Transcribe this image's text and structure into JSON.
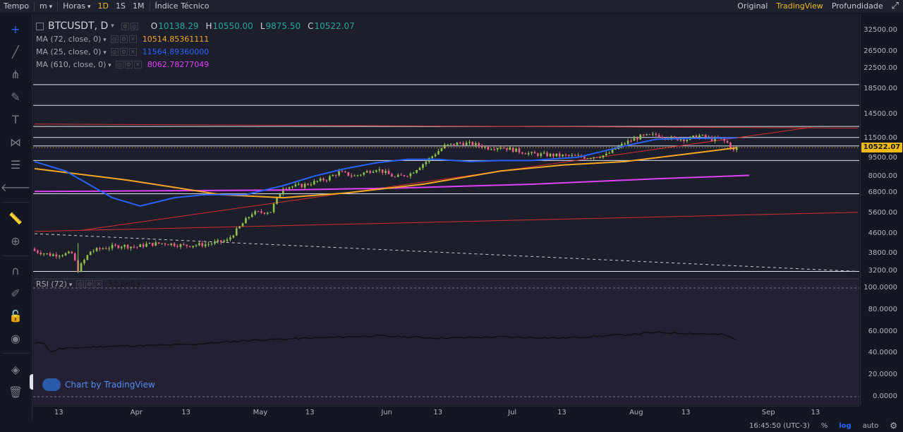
{
  "toolbar": {
    "time_label": "Tempo",
    "minute_label": "m",
    "hours_label": "Horas",
    "intervals": [
      "1D",
      "1S",
      "1M"
    ],
    "active_interval": "1D",
    "indicators_label": "Índice Técnico",
    "views": [
      "Original",
      "TradingView",
      "Profundidade"
    ],
    "active_view": "TradingView"
  },
  "legend": {
    "symbol": "BTCUSDT, D",
    "open_key": "O",
    "open": "10138.29",
    "high_key": "H",
    "high": "10550.00",
    "low_key": "L",
    "low": "9875.50",
    "close_key": "C",
    "close": "10522.07",
    "mas": [
      {
        "name": "MA (72, close, 0)",
        "value": "10514.85361111",
        "color": "#f5a623"
      },
      {
        "name": "MA (25, close, 0)",
        "value": "11564.89360000",
        "color": "#2962ff"
      },
      {
        "name": "MA (610, close, 0)",
        "value": "8062.78277049",
        "color": "#e040fb"
      }
    ],
    "rsi_name": "RSI (72)",
    "rsi_value": "51.6863"
  },
  "watermark": "Chart by TradingView",
  "status": {
    "time": "16:45:50 (UTC-3)",
    "percent": "%",
    "log": "log",
    "auto": "auto"
  },
  "colors": {
    "up": "#26a69a",
    "up_candle": "#8bc34a",
    "down": "#ef5a8c",
    "ma72": "#f5a623",
    "ma25": "#2962ff",
    "ma610": "#e040fb",
    "trend_red": "#d32f2f",
    "last_price": "#f0b90b"
  },
  "chart_data": [
    {
      "type": "candlestick",
      "title": "BTCUSDT, D",
      "scale": "log",
      "y_ticks": [
        32500,
        26500,
        22500,
        18500,
        14500,
        11500,
        9500,
        8000,
        6800,
        5600,
        4600,
        3800,
        3200
      ],
      "ylim": [
        3000,
        36000
      ],
      "last_price": 10522.07,
      "x_ticks": [
        "13",
        "Apr",
        "13",
        "May",
        "13",
        "Jun",
        "13",
        "Jul",
        "13",
        "Aug",
        "13",
        "Sep",
        "13"
      ],
      "horizontal_levels": [
        19300,
        15800,
        12900,
        11600,
        10700,
        9300,
        6750,
        3200
      ],
      "series_close": {
        "name": "Close (daily, approx.)",
        "day_start": 0,
        "values": [
          {
            "d": 0,
            "v": 3900
          },
          {
            "d": 5,
            "v": 3750
          },
          {
            "d": 12,
            "v": 3800
          },
          {
            "d": 14,
            "v": 3250
          },
          {
            "d": 18,
            "v": 3880
          },
          {
            "d": 22,
            "v": 4000
          },
          {
            "d": 28,
            "v": 4100
          },
          {
            "d": 33,
            "v": 4050
          },
          {
            "d": 36,
            "v": 4150
          },
          {
            "d": 42,
            "v": 4200
          },
          {
            "d": 48,
            "v": 4100
          },
          {
            "d": 55,
            "v": 4150
          },
          {
            "d": 62,
            "v": 4300
          },
          {
            "d": 66,
            "v": 4900
          },
          {
            "d": 70,
            "v": 5600
          },
          {
            "d": 76,
            "v": 5700
          },
          {
            "d": 80,
            "v": 7200
          },
          {
            "d": 86,
            "v": 7300
          },
          {
            "d": 94,
            "v": 7800
          },
          {
            "d": 98,
            "v": 8300
          },
          {
            "d": 103,
            "v": 8000
          },
          {
            "d": 110,
            "v": 8600
          },
          {
            "d": 116,
            "v": 7900
          },
          {
            "d": 121,
            "v": 8200
          },
          {
            "d": 126,
            "v": 9200
          },
          {
            "d": 132,
            "v": 10700
          },
          {
            "d": 137,
            "v": 11000
          },
          {
            "d": 141,
            "v": 10900
          },
          {
            "d": 146,
            "v": 10500
          },
          {
            "d": 150,
            "v": 10600
          },
          {
            "d": 154,
            "v": 10300
          },
          {
            "d": 160,
            "v": 9900
          },
          {
            "d": 166,
            "v": 9800
          },
          {
            "d": 172,
            "v": 9700
          },
          {
            "d": 178,
            "v": 9600
          },
          {
            "d": 184,
            "v": 9800
          },
          {
            "d": 190,
            "v": 11000
          },
          {
            "d": 195,
            "v": 11700
          },
          {
            "d": 200,
            "v": 11900
          },
          {
            "d": 205,
            "v": 11500
          },
          {
            "d": 210,
            "v": 11400
          },
          {
            "d": 214,
            "v": 11800
          },
          {
            "d": 218,
            "v": 11400
          },
          {
            "d": 221,
            "v": 11400
          },
          {
            "d": 223,
            "v": 11000
          },
          {
            "d": 225,
            "v": 10200
          },
          {
            "d": 226,
            "v": 10522
          }
        ]
      },
      "ma72": [
        {
          "d": 0,
          "v": 8600
        },
        {
          "d": 30,
          "v": 7700
        },
        {
          "d": 60,
          "v": 6700
        },
        {
          "d": 80,
          "v": 6500
        },
        {
          "d": 100,
          "v": 6800
        },
        {
          "d": 125,
          "v": 7400
        },
        {
          "d": 150,
          "v": 8400
        },
        {
          "d": 170,
          "v": 8900
        },
        {
          "d": 190,
          "v": 9200
        },
        {
          "d": 210,
          "v": 9900
        },
        {
          "d": 226,
          "v": 10515
        }
      ],
      "ma25": [
        {
          "d": 0,
          "v": 9200
        },
        {
          "d": 10,
          "v": 8400
        },
        {
          "d": 25,
          "v": 6500
        },
        {
          "d": 34,
          "v": 6000
        },
        {
          "d": 45,
          "v": 6500
        },
        {
          "d": 55,
          "v": 6700
        },
        {
          "d": 68,
          "v": 6700
        },
        {
          "d": 80,
          "v": 7300
        },
        {
          "d": 90,
          "v": 8000
        },
        {
          "d": 100,
          "v": 8600
        },
        {
          "d": 110,
          "v": 9100
        },
        {
          "d": 120,
          "v": 9400
        },
        {
          "d": 130,
          "v": 9400
        },
        {
          "d": 140,
          "v": 9200
        },
        {
          "d": 150,
          "v": 9300
        },
        {
          "d": 160,
          "v": 9300
        },
        {
          "d": 175,
          "v": 9600
        },
        {
          "d": 190,
          "v": 10700
        },
        {
          "d": 200,
          "v": 11400
        },
        {
          "d": 210,
          "v": 11500
        },
        {
          "d": 226,
          "v": 11565
        }
      ],
      "ma610": [
        {
          "d": 0,
          "v": 6900
        },
        {
          "d": 40,
          "v": 6950
        },
        {
          "d": 80,
          "v": 7000
        },
        {
          "d": 120,
          "v": 7150
        },
        {
          "d": 160,
          "v": 7400
        },
        {
          "d": 200,
          "v": 7800
        },
        {
          "d": 230,
          "v": 8063
        }
      ],
      "trend_lines": [
        {
          "style": "solid",
          "from": {
            "d": 0,
            "v": 13200
          },
          "to": {
            "d": 265,
            "v": 12700
          }
        },
        {
          "style": "solid",
          "from": {
            "d": 0,
            "v": 4700
          },
          "to": {
            "d": 265,
            "v": 5650
          }
        },
        {
          "style": "solid",
          "from": {
            "d": 15,
            "v": 4750
          },
          "to": {
            "d": 250,
            "v": 12800
          }
        },
        {
          "style": "dashed",
          "from": {
            "d": 0,
            "v": 4600
          },
          "to": {
            "d": 265,
            "v": 3200
          }
        }
      ]
    },
    {
      "type": "line",
      "title": "RSI (72)",
      "ylim": [
        0,
        100
      ],
      "y_ticks": [
        100,
        80,
        60,
        40,
        20,
        0
      ],
      "last_value": 51.6863,
      "values": [
        {
          "d": 0,
          "v": 49
        },
        {
          "d": 3,
          "v": 50
        },
        {
          "d": 5,
          "v": 41
        },
        {
          "d": 8,
          "v": 44
        },
        {
          "d": 20,
          "v": 46
        },
        {
          "d": 35,
          "v": 47
        },
        {
          "d": 50,
          "v": 48
        },
        {
          "d": 70,
          "v": 52
        },
        {
          "d": 90,
          "v": 54
        },
        {
          "d": 110,
          "v": 56
        },
        {
          "d": 130,
          "v": 54
        },
        {
          "d": 150,
          "v": 55
        },
        {
          "d": 170,
          "v": 54
        },
        {
          "d": 190,
          "v": 57
        },
        {
          "d": 200,
          "v": 59
        },
        {
          "d": 215,
          "v": 58
        },
        {
          "d": 222,
          "v": 57
        },
        {
          "d": 226,
          "v": 52
        }
      ]
    }
  ]
}
